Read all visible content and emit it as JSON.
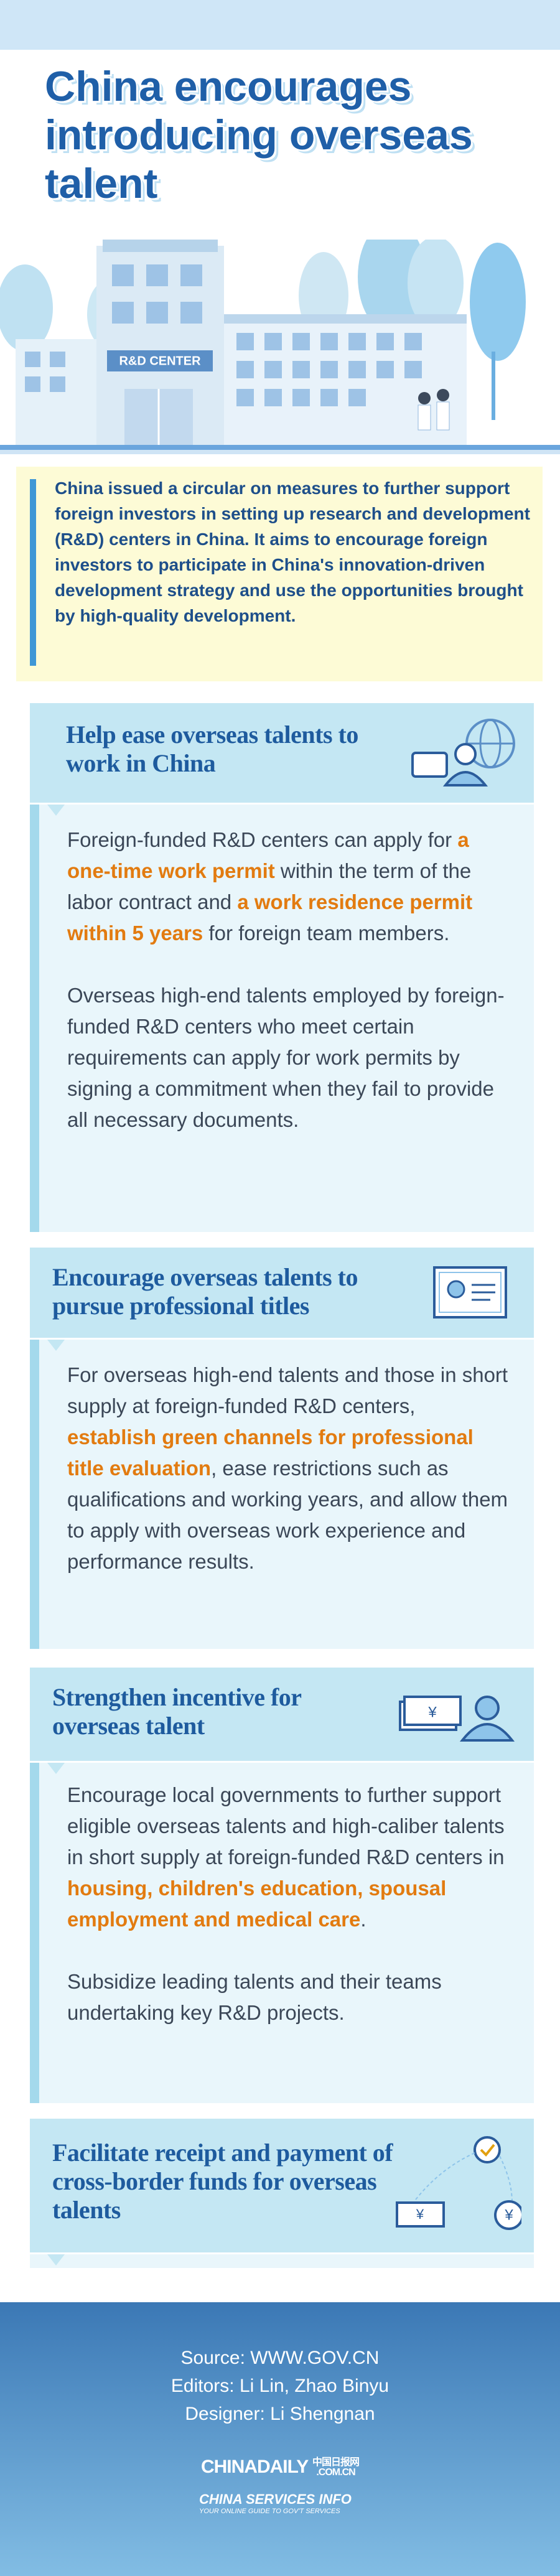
{
  "header": {
    "title": "China encourages introducing overseas talent"
  },
  "illustration": {
    "sign": "R&D CENTER"
  },
  "intro": "China issued a circular on measures to further support foreign investors in setting up research and development (R&D) centers in China. It aims to encourage foreign investors to participate in China's innovation-driven development strategy and use the opportunities brought by high-quality development.",
  "sections": [
    {
      "title": "Help ease overseas talents to work in China",
      "paragraphs": [
        [
          {
            "text": "Foreign-funded R&D centers can apply for ",
            "emphasis": false
          },
          {
            "text": "a one-time work permit",
            "emphasis": true
          },
          {
            "text": " within the term of the labor contract and ",
            "emphasis": false
          },
          {
            "text": "a work residence permit within 5 years",
            "emphasis": true
          },
          {
            "text": " for foreign team members.",
            "emphasis": false
          }
        ],
        [
          {
            "text": "Overseas high-end talents employed by foreign-funded R&D centers who meet certain requirements can apply for work permits by signing a commitment when they fail to provide all necessary documents.",
            "emphasis": false
          }
        ]
      ]
    },
    {
      "title": "Encourage overseas talents to pursue professional titles",
      "paragraphs": [
        [
          {
            "text": "For overseas high-end talents and those in short supply at foreign-funded R&D centers, ",
            "emphasis": false
          },
          {
            "text": "establish green channels for professional title evaluation",
            "emphasis": true
          },
          {
            "text": ", ease restrictions such as qualifications and working years, and allow them to apply with overseas work experience and performance results.",
            "emphasis": false
          }
        ]
      ]
    },
    {
      "title": "Strengthen incentive for overseas talent",
      "paragraphs": [
        [
          {
            "text": "Encourage local governments to further support eligible overseas talents and high-caliber talents in short supply at foreign-funded R&D centers in ",
            "emphasis": false
          },
          {
            "text": "housing, children's education, spousal employment and medical care",
            "emphasis": true
          },
          {
            "text": ".",
            "emphasis": false
          }
        ],
        [
          {
            "text": "Subsidize leading talents and their teams undertaking key R&D projects.",
            "emphasis": false
          }
        ]
      ]
    },
    {
      "title": "Facilitate receipt and payment of cross-border funds for overseas talents",
      "paragraphs": []
    }
  ],
  "footer": {
    "source": "Source: WWW.GOV.CN",
    "editors": "Editors: Li Lin, Zhao Binyu",
    "designer": "Designer: Li Shengnan",
    "logo1": "CHINADAILY",
    "logo1_cn": "中国日报网",
    "logo1_sub": ".COM.CN",
    "logo2": "CHINA SERVICES INFO",
    "logo2_sub": "YOUR ONLINE GUIDE TO GOV'T SERVICES"
  }
}
